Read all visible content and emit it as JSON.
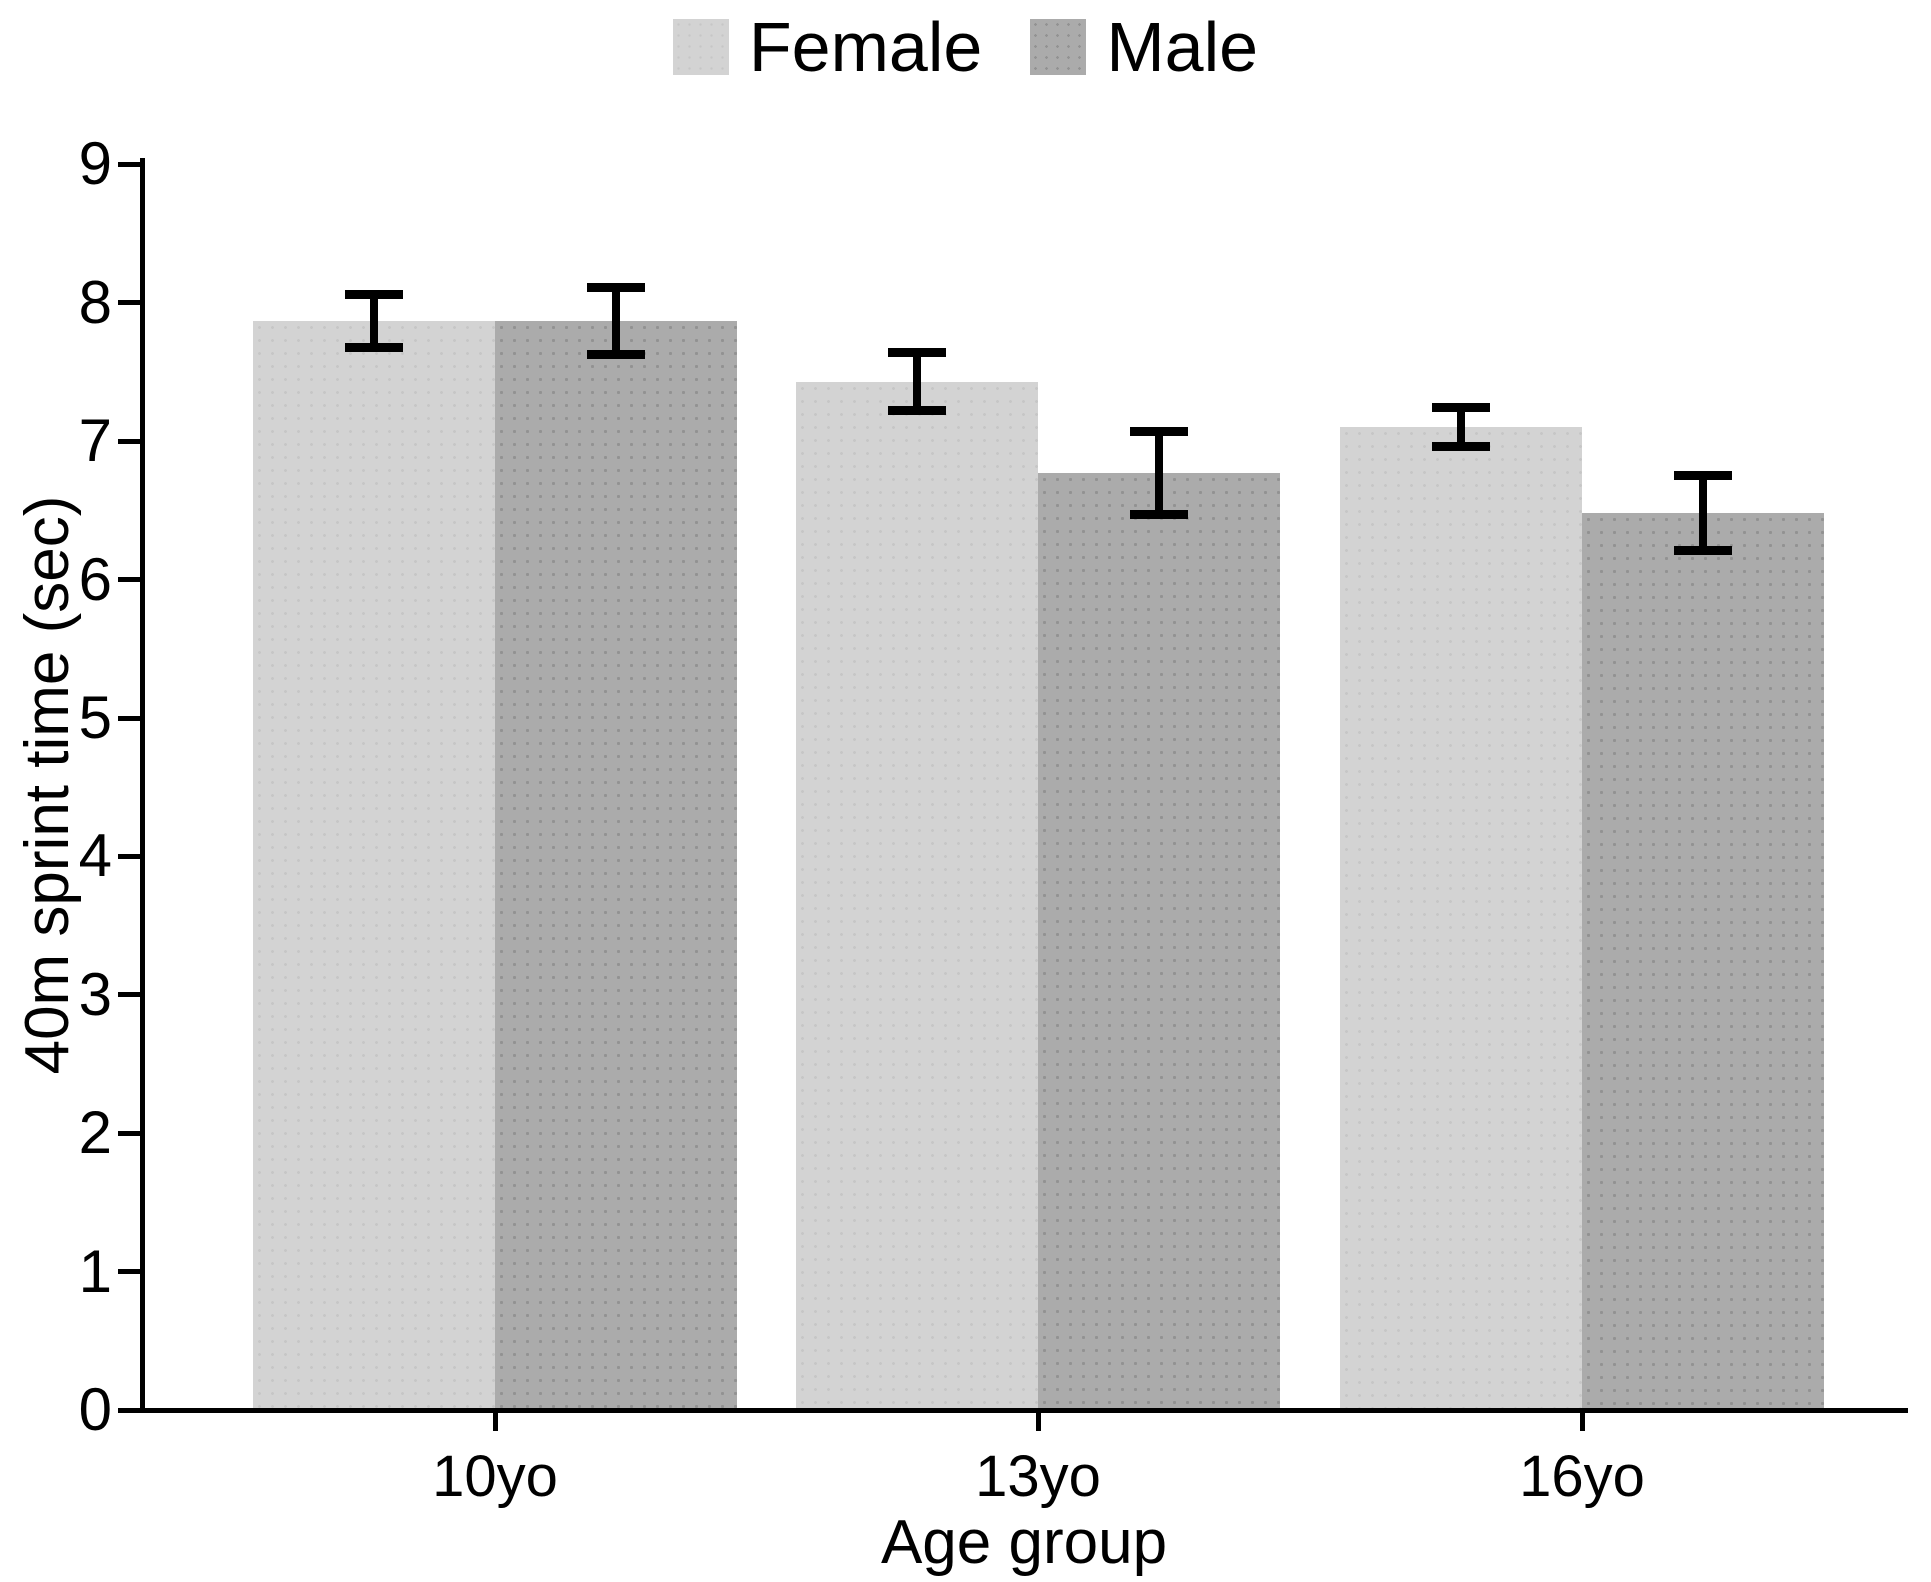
{
  "colors": {
    "background": "#ffffff",
    "axis": "#000000",
    "text": "#000000",
    "female_bar": "#d3d3d3",
    "male_bar": "#ababab"
  },
  "legend": {
    "items": [
      {
        "label": "Female",
        "swatch_color": "#d3d3d3"
      },
      {
        "label": "Male",
        "swatch_color": "#ababab"
      }
    ]
  },
  "chart_data": {
    "type": "bar",
    "title": "",
    "categories": [
      "10yo",
      "13yo",
      "16yo"
    ],
    "series": [
      {
        "name": "Female",
        "color": "#d3d3d3",
        "values": [
          7.87,
          7.43,
          7.1
        ],
        "error_minus": [
          0.19,
          0.21,
          0.14
        ],
        "error_plus": [
          0.19,
          0.21,
          0.14
        ]
      },
      {
        "name": "Male",
        "color": "#ababab",
        "values": [
          7.87,
          6.77,
          6.48
        ],
        "error_minus": [
          0.24,
          0.3,
          0.27
        ],
        "error_plus": [
          0.24,
          0.3,
          0.27
        ]
      }
    ],
    "xlabel": "Age group",
    "ylabel": "40m sprint time (sec)",
    "ylim": [
      0,
      9
    ],
    "yticks": [
      0,
      1,
      2,
      3,
      4,
      5,
      6,
      7,
      8,
      9
    ],
    "grid": false,
    "legend_position": "top-center",
    "error_bars": true,
    "bar_style": "grouped"
  }
}
